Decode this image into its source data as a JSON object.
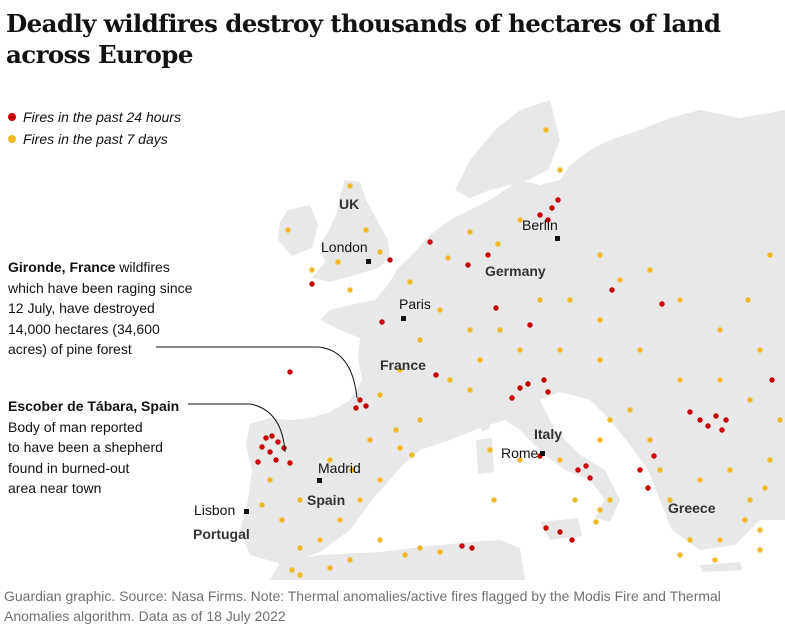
{
  "title": "Deadly wildfires destroy thousands of hectares of land across Europe",
  "legend": {
    "items": [
      {
        "label": "Fires in the past 24 hours",
        "color": "#c70000"
      },
      {
        "label": "Fires in the past 7 days",
        "color": "#f2b925"
      }
    ]
  },
  "map": {
    "land_color": "#e8e8e8",
    "cities": {
      "london": "London",
      "paris": "Paris",
      "berlin": "Berlin",
      "madrid": "Madrid",
      "rome": "Rome",
      "lisbon": "Lisbon"
    },
    "countries": {
      "uk": "UK",
      "germany": "Germany",
      "france": "France",
      "italy": "Italy",
      "spain": "Spain",
      "portugal": "Portugal",
      "greece": "Greece"
    }
  },
  "annotations": {
    "gironde": {
      "bold": "Gironde, France",
      "lines": [
        "wildfires",
        "which have been raging since",
        "12 July, have destroyed",
        "14,000 hectares (34,600",
        "acres) of pine forest"
      ]
    },
    "escober": {
      "bold": "Escober de Tábara, Spain",
      "lines": [
        "Body of man reported",
        "to have been a shepherd",
        "found in burned-out",
        "area near town"
      ]
    }
  },
  "source": "Guardian graphic. Source: Nasa Firms. Note: Thermal anomalies/active fires flagged by the Modis Fire and Thermal Anomalies algorithm. Data as of 18 July 2022"
}
